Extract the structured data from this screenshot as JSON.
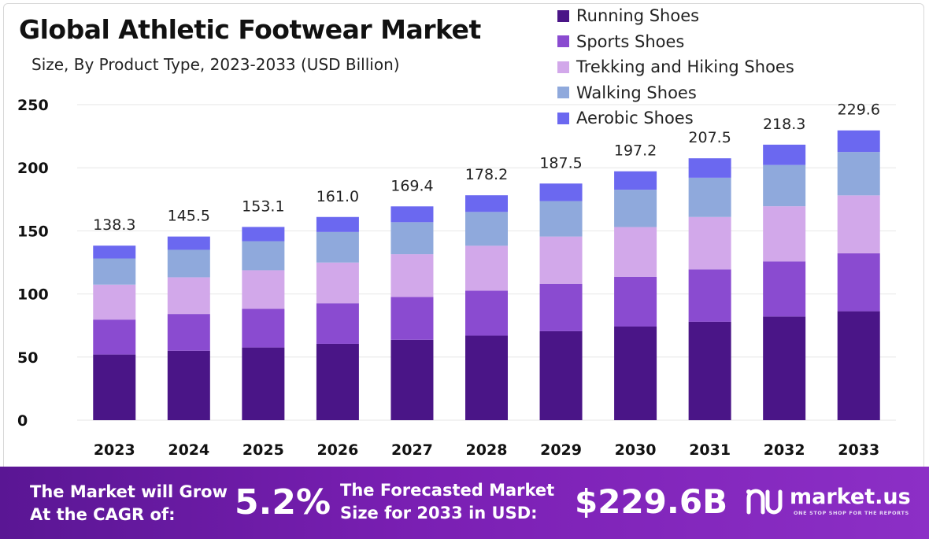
{
  "header": {
    "title": "Global Athletic Footwear Market",
    "subtitle": "Size, By Product Type, 2023-2033 (USD Billion)"
  },
  "chart_data": {
    "type": "bar",
    "stacked": true,
    "title": "Global Athletic Footwear Market",
    "subtitle": "Size, By Product Type, 2023-2033 (USD Billion)",
    "xlabel": "",
    "ylabel": "",
    "categories": [
      "2023",
      "2024",
      "2025",
      "2026",
      "2027",
      "2028",
      "2029",
      "2030",
      "2031",
      "2032",
      "2033"
    ],
    "totals": [
      "138.3",
      "145.5",
      "153.1",
      "161.0",
      "169.4",
      "178.2",
      "187.5",
      "197.2",
      "207.5",
      "218.3",
      "229.6"
    ],
    "series": [
      {
        "name": "Running Shoes",
        "color": "#4a1587",
        "values": [
          52,
          55,
          57.6,
          60.5,
          63.7,
          67,
          70.5,
          74.2,
          78,
          82.1,
          86.3
        ]
      },
      {
        "name": "Sports Shoes",
        "color": "#8a4bd0",
        "values": [
          27.7,
          29.1,
          30.6,
          32.2,
          33.9,
          35.6,
          37.5,
          39.4,
          41.5,
          43.7,
          45.9
        ]
      },
      {
        "name": "Trekking and Hiking Shoes",
        "color": "#d2a8ea",
        "values": [
          27.7,
          29.1,
          30.6,
          32.2,
          33.9,
          35.6,
          37.5,
          39.4,
          41.5,
          43.7,
          45.9
        ]
      },
      {
        "name": "Walking Shoes",
        "color": "#8fa9dc",
        "values": [
          20.7,
          21.8,
          23,
          24.2,
          25.4,
          26.8,
          28.1,
          29.6,
          31.1,
          32.7,
          34.4
        ]
      },
      {
        "name": "Aerobic Shoes",
        "color": "#6b68f0",
        "values": [
          10.2,
          10.5,
          11.3,
          11.9,
          12.5,
          13.2,
          13.9,
          14.6,
          15.4,
          16.1,
          17.1
        ]
      }
    ],
    "ylim": [
      0,
      250
    ],
    "yticks": [
      0,
      50,
      100,
      150,
      200,
      250
    ],
    "grid": true,
    "legend": "top-right"
  },
  "footer": {
    "cagr_text_line1": "The Market will Grow",
    "cagr_text_line2": "At the CAGR of:",
    "cagr_value": "5.2%",
    "forecast_text_line1": "The Forecasted Market",
    "forecast_text_line2": "Size for 2033 in USD:",
    "forecast_value": "$229.6B",
    "brand_name": "market.us",
    "brand_tagline": "ONE STOP SHOP FOR THE REPORTS",
    "brand_icon": "market-us-logo-icon"
  }
}
